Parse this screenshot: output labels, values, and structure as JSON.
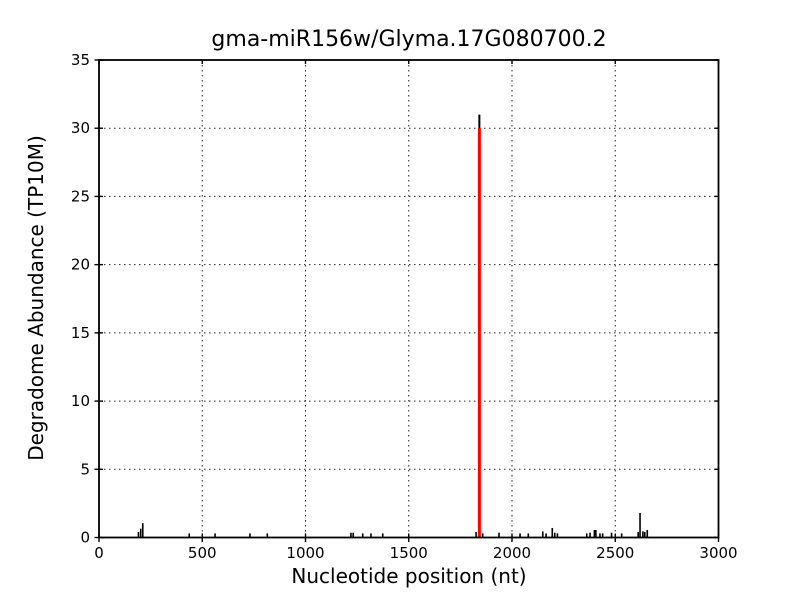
{
  "figure": {
    "background": "#ffffff",
    "frame_color": "#000000"
  },
  "chart_data": {
    "type": "bar",
    "title": "gma-miR156w/Glyma.17G080700.2",
    "xlabel": "Nucleotide position (nt)",
    "ylabel": "Degradome Abundance (TP10M)",
    "xlim": [
      0,
      3000
    ],
    "ylim": [
      0,
      35
    ],
    "xticks": [
      0,
      500,
      1000,
      1500,
      2000,
      2500,
      3000
    ],
    "yticks": [
      0,
      5,
      10,
      15,
      20,
      25,
      30,
      35
    ],
    "grid": "dotted",
    "grid_color": "#000000",
    "bar_color": "#000000",
    "highlight_color": "#ff0000",
    "highlight": {
      "position": 1842,
      "height": 31,
      "marker_height": 30
    },
    "spikes": [
      [
        191,
        0.4
      ],
      [
        202,
        0.65
      ],
      [
        212,
        1.05
      ],
      [
        437,
        0.3
      ],
      [
        562,
        0.3
      ],
      [
        731,
        0.3
      ],
      [
        815,
        0.3
      ],
      [
        1220,
        0.35
      ],
      [
        1231,
        0.35
      ],
      [
        1277,
        0.3
      ],
      [
        1317,
        0.3
      ],
      [
        1374,
        0.3
      ],
      [
        1826,
        0.4
      ],
      [
        1858,
        0.3
      ],
      [
        1937,
        0.35
      ],
      [
        2039,
        0.3
      ],
      [
        2079,
        0.3
      ],
      [
        2149,
        0.45
      ],
      [
        2165,
        0.3
      ],
      [
        2195,
        0.7
      ],
      [
        2207,
        0.35
      ],
      [
        2220,
        0.3
      ],
      [
        2362,
        0.3
      ],
      [
        2378,
        0.35
      ],
      [
        2399,
        0.55
      ],
      [
        2406,
        0.55
      ],
      [
        2426,
        0.3
      ],
      [
        2439,
        0.3
      ],
      [
        2482,
        0.35
      ],
      [
        2531,
        0.3
      ],
      [
        2611,
        0.4
      ],
      [
        2620,
        1.8
      ],
      [
        2634,
        0.45
      ],
      [
        2643,
        0.4
      ],
      [
        2655,
        0.55
      ]
    ]
  }
}
